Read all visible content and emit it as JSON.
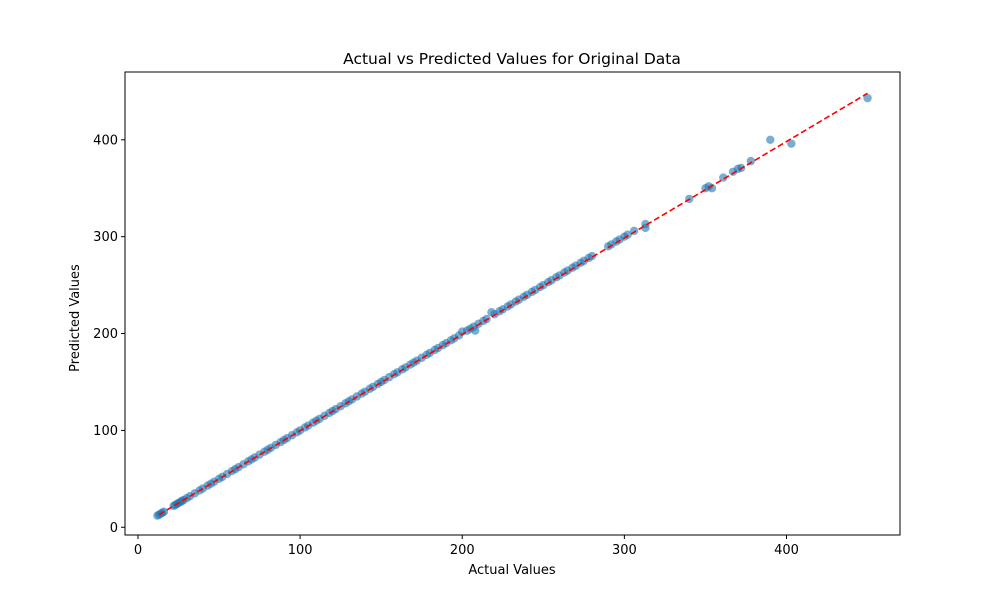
{
  "chart_data": {
    "type": "scatter",
    "title": "Actual vs Predicted Values for Original Data",
    "xlabel": "Actual Values",
    "ylabel": "Predicted Values",
    "xlim": [
      -8,
      470
    ],
    "ylim": [
      -8,
      470
    ],
    "xticks": [
      0,
      100,
      200,
      300,
      400
    ],
    "yticks": [
      0,
      100,
      200,
      300,
      400
    ],
    "grid": false,
    "legend": "none",
    "colors": {
      "points": "#1f77b4",
      "reference_line": "#ff0000"
    },
    "reference_line": {
      "style": "dashed",
      "from": [
        13,
        13
      ],
      "to": [
        450,
        448
      ]
    },
    "series": [
      {
        "values_x": [
          12,
          13,
          14,
          15,
          16,
          22,
          23,
          24,
          25,
          26,
          27,
          28,
          30,
          32,
          35,
          38,
          40,
          43,
          45,
          47,
          50,
          52,
          55,
          58,
          60,
          62,
          65,
          68,
          70,
          72,
          75,
          78,
          80,
          82,
          85,
          88,
          90,
          92,
          95,
          98,
          100,
          103,
          105,
          108,
          110,
          112,
          115,
          118,
          120,
          122,
          125,
          128,
          130,
          132,
          135,
          138,
          140,
          143,
          145,
          148,
          150,
          152,
          155,
          158,
          160,
          163,
          165,
          168,
          170,
          172,
          175,
          178,
          180,
          183,
          185,
          188,
          190,
          193,
          195,
          198,
          200,
          203,
          205,
          207,
          208,
          210,
          213,
          215,
          218,
          220,
          223,
          225,
          228,
          230,
          233,
          235,
          238,
          240,
          243,
          245,
          248,
          250,
          253,
          255,
          258,
          260,
          263,
          265,
          268,
          270,
          273,
          275,
          278,
          280,
          290,
          292,
          295,
          297,
          300,
          302,
          306,
          313,
          313,
          340,
          350,
          352,
          354,
          361,
          367,
          370,
          372,
          378,
          390,
          403,
          450
        ],
        "values_y": [
          12,
          13,
          14,
          15,
          16,
          22,
          23,
          24,
          25,
          26,
          27,
          28,
          30,
          32,
          35,
          38,
          40,
          43,
          45,
          47,
          50,
          52,
          55,
          58,
          60,
          62,
          65,
          68,
          70,
          72,
          75,
          78,
          80,
          82,
          85,
          88,
          90,
          92,
          95,
          98,
          100,
          103,
          105,
          108,
          110,
          112,
          115,
          118,
          120,
          122,
          125,
          128,
          130,
          132,
          135,
          138,
          140,
          143,
          145,
          148,
          150,
          152,
          155,
          158,
          160,
          163,
          165,
          168,
          170,
          172,
          175,
          178,
          180,
          183,
          185,
          188,
          190,
          193,
          195,
          198,
          202,
          203,
          205,
          207,
          203,
          210,
          213,
          215,
          222,
          220,
          223,
          225,
          228,
          230,
          233,
          235,
          238,
          240,
          243,
          245,
          248,
          250,
          253,
          255,
          258,
          260,
          263,
          265,
          268,
          270,
          273,
          275,
          278,
          280,
          290,
          292,
          295,
          297,
          300,
          302,
          306,
          313,
          309,
          339,
          350,
          352,
          350,
          361,
          367,
          370,
          371,
          378,
          400,
          396,
          443
        ]
      }
    ]
  }
}
